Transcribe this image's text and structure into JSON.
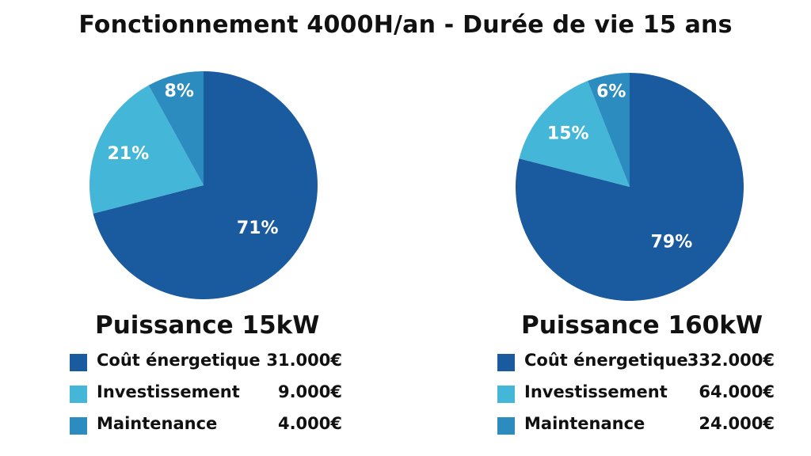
{
  "title": "Fonctionnement 4000H/an - Durée de vie 15 ans",
  "colors": {
    "energy": "#1a5a9e",
    "investment": "#44b7d9",
    "maintenance": "#2d8cbf"
  },
  "chart_data": [
    {
      "type": "pie",
      "title": "Puissance 15kW",
      "slices": [
        {
          "label": "Coût énergetique",
          "value": 71,
          "display": "71%",
          "amount": "31.000€",
          "color": "#1a5a9e"
        },
        {
          "label": "Investissement",
          "value": 21,
          "display": "21%",
          "amount": "9.000€",
          "color": "#44b7d9"
        },
        {
          "label": "Maintenance",
          "value": 8,
          "display": "8%",
          "amount": "4.000€",
          "color": "#2d8cbf"
        }
      ]
    },
    {
      "type": "pie",
      "title": "Puissance 160kW",
      "slices": [
        {
          "label": "Coût énergetique",
          "value": 79,
          "display": "79%",
          "amount": "332.000€",
          "color": "#1a5a9e"
        },
        {
          "label": "Investissement",
          "value": 15,
          "display": "15%",
          "amount": "64.000€",
          "color": "#44b7d9"
        },
        {
          "label": "Maintenance",
          "value": 6,
          "display": "6%",
          "amount": "24.000€",
          "color": "#2d8cbf"
        }
      ]
    }
  ]
}
